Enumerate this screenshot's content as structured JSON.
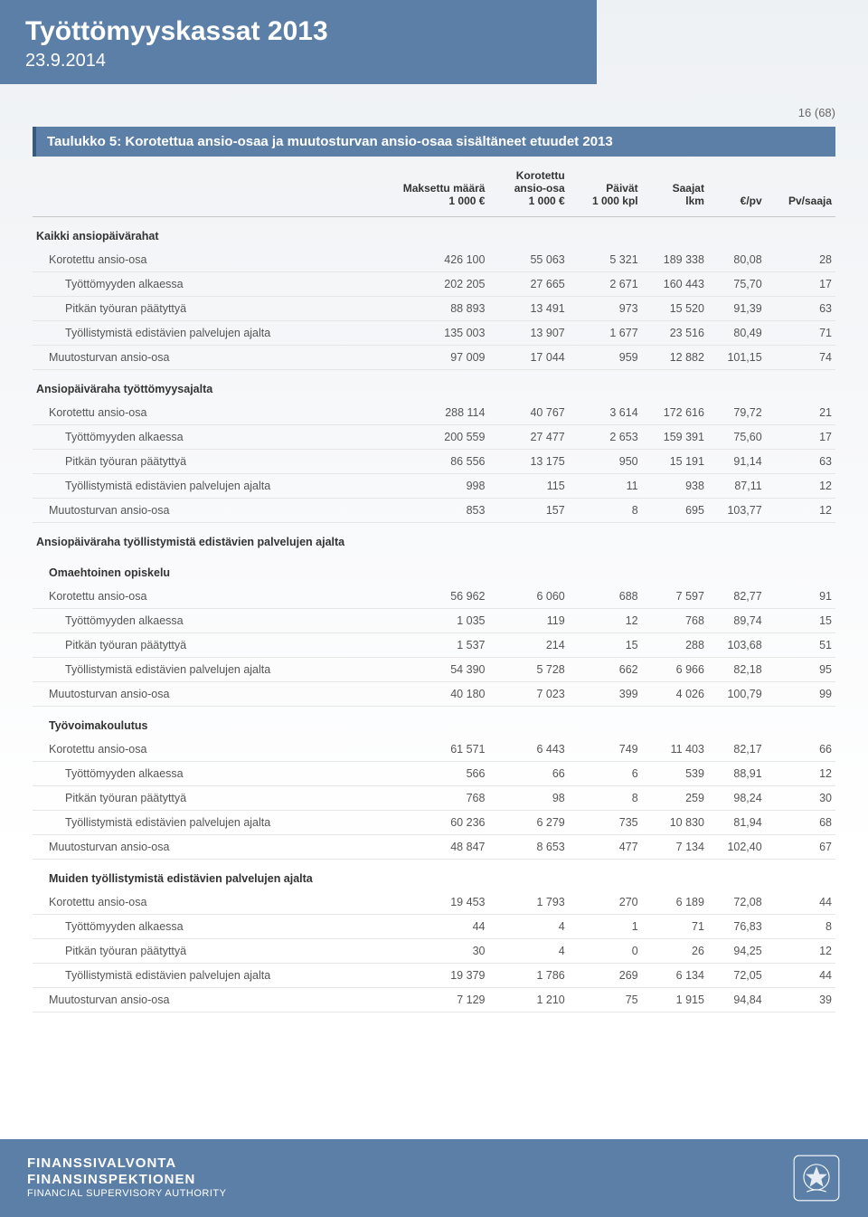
{
  "header": {
    "title": "Työttömyyskassat 2013",
    "date": "23.9.2014"
  },
  "page_number": "16 (68)",
  "table_title": "Taulukko 5: Korotettua ansio-osaa ja muutosturvan ansio-osaa sisältäneet etuudet  2013",
  "columns": [
    "",
    "Maksettu määrä\n1 000 €",
    "Korotettu\nansio-osa\n1 000 €",
    "Päivät\n1 000 kpl",
    "Saajat\nlkm",
    "€/pv",
    "Pv/saaja"
  ],
  "rows": [
    {
      "type": "section",
      "label": "Kaikki ansiopäivärahat"
    },
    {
      "ind": 1,
      "label": "Korotettu ansio-osa",
      "v": [
        "426 100",
        "55 063",
        "5 321",
        "189 338",
        "80,08",
        "28"
      ]
    },
    {
      "ind": 2,
      "label": "Työttömyyden alkaessa",
      "v": [
        "202 205",
        "27 665",
        "2 671",
        "160 443",
        "75,70",
        "17"
      ]
    },
    {
      "ind": 2,
      "label": "Pitkän työuran päätyttyä",
      "v": [
        "88 893",
        "13 491",
        "973",
        "15 520",
        "91,39",
        "63"
      ]
    },
    {
      "ind": 2,
      "label": "Työllistymistä edistävien palvelujen ajalta",
      "v": [
        "135 003",
        "13 907",
        "1 677",
        "23 516",
        "80,49",
        "71"
      ]
    },
    {
      "ind": 1,
      "label": "Muutosturvan ansio-osa",
      "v": [
        "97 009",
        "17 044",
        "959",
        "12 882",
        "101,15",
        "74"
      ]
    },
    {
      "type": "section",
      "label": "Ansiopäiväraha työttömyysajalta"
    },
    {
      "ind": 1,
      "label": "Korotettu ansio-osa",
      "v": [
        "288 114",
        "40 767",
        "3 614",
        "172 616",
        "79,72",
        "21"
      ]
    },
    {
      "ind": 2,
      "label": "Työttömyyden alkaessa",
      "v": [
        "200 559",
        "27 477",
        "2 653",
        "159 391",
        "75,60",
        "17"
      ]
    },
    {
      "ind": 2,
      "label": "Pitkän työuran päätyttyä",
      "v": [
        "86 556",
        "13 175",
        "950",
        "15 191",
        "91,14",
        "63"
      ]
    },
    {
      "ind": 2,
      "label": "Työllistymistä edistävien palvelujen ajalta",
      "v": [
        "998",
        "115",
        "11",
        "938",
        "87,11",
        "12"
      ]
    },
    {
      "ind": 1,
      "label": "Muutosturvan ansio-osa",
      "v": [
        "853",
        "157",
        "8",
        "695",
        "103,77",
        "12"
      ]
    },
    {
      "type": "section",
      "label": "Ansiopäiväraha työllistymistä edistävien palvelujen ajalta"
    },
    {
      "type": "section",
      "ind": 1,
      "label": "Omaehtoinen opiskelu",
      "strong": true
    },
    {
      "ind": 1,
      "label": "Korotettu ansio-osa",
      "v": [
        "56 962",
        "6 060",
        "688",
        "7 597",
        "82,77",
        "91"
      ]
    },
    {
      "ind": 2,
      "label": "Työttömyyden alkaessa",
      "v": [
        "1 035",
        "119",
        "12",
        "768",
        "89,74",
        "15"
      ]
    },
    {
      "ind": 2,
      "label": "Pitkän työuran päätyttyä",
      "v": [
        "1 537",
        "214",
        "15",
        "288",
        "103,68",
        "51"
      ]
    },
    {
      "ind": 2,
      "label": "Työllistymistä edistävien palvelujen ajalta",
      "v": [
        "54 390",
        "5 728",
        "662",
        "6 966",
        "82,18",
        "95"
      ]
    },
    {
      "ind": 1,
      "label": "Muutosturvan ansio-osa",
      "v": [
        "40 180",
        "7 023",
        "399",
        "4 026",
        "100,79",
        "99"
      ]
    },
    {
      "type": "section",
      "ind": 1,
      "label": "Työvoimakoulutus",
      "strong": true
    },
    {
      "ind": 1,
      "label": "Korotettu ansio-osa",
      "v": [
        "61 571",
        "6 443",
        "749",
        "11 403",
        "82,17",
        "66"
      ]
    },
    {
      "ind": 2,
      "label": "Työttömyyden alkaessa",
      "v": [
        "566",
        "66",
        "6",
        "539",
        "88,91",
        "12"
      ]
    },
    {
      "ind": 2,
      "label": "Pitkän työuran päätyttyä",
      "v": [
        "768",
        "98",
        "8",
        "259",
        "98,24",
        "30"
      ]
    },
    {
      "ind": 2,
      "label": "Työllistymistä edistävien palvelujen ajalta",
      "v": [
        "60 236",
        "6 279",
        "735",
        "10 830",
        "81,94",
        "68"
      ]
    },
    {
      "ind": 1,
      "label": "Muutosturvan ansio-osa",
      "v": [
        "48 847",
        "8 653",
        "477",
        "7 134",
        "102,40",
        "67"
      ]
    },
    {
      "type": "section",
      "ind": 1,
      "label": "Muiden työllistymistä edistävien palvelujen ajalta",
      "strong": true
    },
    {
      "ind": 1,
      "label": "Korotettu ansio-osa",
      "v": [
        "19 453",
        "1 793",
        "270",
        "6 189",
        "72,08",
        "44"
      ]
    },
    {
      "ind": 2,
      "label": "Työttömyyden alkaessa",
      "v": [
        "44",
        "4",
        "1",
        "71",
        "76,83",
        "8"
      ]
    },
    {
      "ind": 2,
      "label": "Pitkän työuran päätyttyä",
      "v": [
        "30",
        "4",
        "0",
        "26",
        "94,25",
        "12"
      ]
    },
    {
      "ind": 2,
      "label": "Työllistymistä edistävien palvelujen ajalta",
      "v": [
        "19 379",
        "1 786",
        "269",
        "6 134",
        "72,05",
        "44"
      ]
    },
    {
      "ind": 1,
      "label": "Muutosturvan ansio-osa",
      "v": [
        "7 129",
        "1 210",
        "75",
        "1 915",
        "94,84",
        "39"
      ]
    }
  ],
  "footer": {
    "org_fi": "FINANSSIVALVONTA",
    "org_sv": "FINANSINSPEKTIONEN",
    "org_en": "FINANCIAL SUPERVISORY AUTHORITY"
  },
  "colors": {
    "band": "#5b7fa6",
    "band_border": "#3a5a7d",
    "text_muted": "#555",
    "row_border": "#e6e6e6"
  }
}
